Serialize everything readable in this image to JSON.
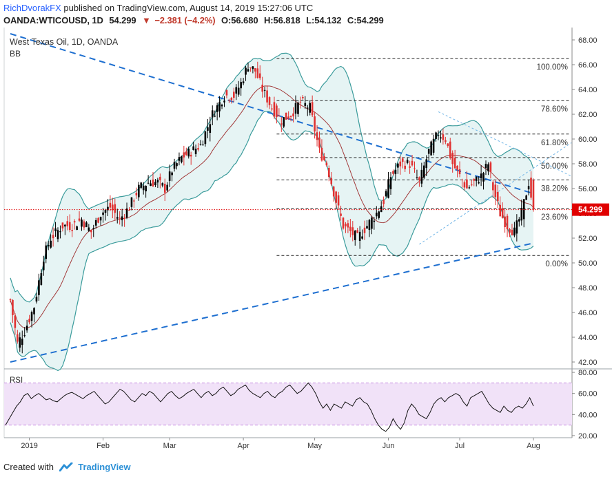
{
  "header": {
    "author": "RichDvorakFX",
    "published": "published on TradingView.com, August 14, 2019 15:27:06 UTC",
    "symbol": "OANDA:WTICOUSD, 1D",
    "last": "54.299",
    "change_arrow": "▼",
    "change": "−2.381 (−4.2%)",
    "open": "O:56.680",
    "high": "H:56.818",
    "low": "L:54.132",
    "close": "C:54.299"
  },
  "footer": {
    "created_with": "Created with",
    "brand": "TradingView",
    "brand_icon": "tradingview-logo-icon"
  },
  "colors": {
    "up": "#000000",
    "down": "#e03131",
    "bb_band": "#3a9b9b",
    "bb_fill": "#e6f4f4",
    "bb_mid": "#a33b3b",
    "trend": "#1e6fd0",
    "fib": "#222222",
    "last_price": "#e00000",
    "rsi_band": "#f1e2f8",
    "rsi_band_line": "#c58ae0"
  },
  "chart_data": [
    {
      "type": "candlestick",
      "title": "West Texas Oil, 1D, OANDA",
      "indicator_label": "BB",
      "y_range": [
        41.5,
        69.0
      ],
      "y_ticks": [
        42.0,
        44.0,
        46.0,
        48.0,
        50.0,
        52.0,
        54.0,
        56.0,
        58.0,
        60.0,
        62.0,
        64.0,
        66.0,
        68.0
      ],
      "x_labels": [
        "2019",
        "Feb",
        "Mar",
        "Apr",
        "May",
        "Jun",
        "Jul",
        "Aug"
      ],
      "last_price": 54.299,
      "last_price_label": "54.299",
      "fib_levels": [
        {
          "label": "100.00%",
          "value": 66.5
        },
        {
          "label": "78.60%",
          "value": 63.1
        },
        {
          "label": "61.80%",
          "value": 60.4
        },
        {
          "label": "50.00%",
          "value": 58.5
        },
        {
          "label": "38.20%",
          "value": 56.7
        },
        {
          "label": "23.60%",
          "value": 54.4
        },
        {
          "label": "0.00%",
          "value": 50.6
        }
      ],
      "trendlines": [
        {
          "name": "resistance",
          "from": {
            "day": 0,
            "value": 68.5
          },
          "to": {
            "day": 220,
            "value": 55.6
          }
        },
        {
          "name": "support",
          "from": {
            "day": 0,
            "value": 42.0
          },
          "to": {
            "day": 220,
            "value": 51.6
          }
        }
      ],
      "month_days": {
        "2019": 8,
        "Feb": 39,
        "Mar": 67,
        "Apr": 98,
        "May": 128,
        "Jun": 159,
        "Jul": 189,
        "Aug": 220
      }
    },
    {
      "type": "line",
      "title": "RSI",
      "y_range": [
        18,
        82
      ],
      "y_ticks": [
        20.0,
        40.0,
        60.0,
        80.0
      ],
      "band": [
        30,
        70
      ],
      "values": [
        30,
        36,
        42,
        48,
        52,
        58,
        60,
        55,
        58,
        60,
        57,
        54,
        55,
        53,
        52,
        55,
        58,
        60,
        61,
        59,
        57,
        55,
        58,
        60,
        62,
        58,
        54,
        50,
        52,
        56,
        60,
        64,
        62,
        58,
        54,
        52,
        56,
        60,
        58,
        62,
        60,
        56,
        52,
        56,
        60,
        62,
        58,
        55,
        57,
        60,
        62,
        64,
        60,
        56,
        60,
        62,
        58,
        60,
        64,
        66,
        62,
        58,
        60,
        64,
        66,
        68,
        63,
        60,
        58,
        56,
        60,
        62,
        58,
        56,
        60,
        62,
        66,
        68,
        64,
        60,
        62,
        66,
        70,
        66,
        60,
        52,
        46,
        50,
        44,
        50,
        48,
        46,
        52,
        50,
        48,
        54,
        56,
        52,
        50,
        44,
        36,
        30,
        26,
        24,
        28,
        36,
        30,
        26,
        32,
        44,
        50,
        46,
        40,
        38,
        36,
        42,
        50,
        54,
        56,
        52,
        56,
        58,
        60,
        58,
        52,
        48,
        56,
        58,
        60,
        62,
        56,
        50,
        46,
        44,
        42,
        48,
        44,
        42,
        46,
        48,
        46,
        50,
        56,
        48
      ]
    }
  ]
}
